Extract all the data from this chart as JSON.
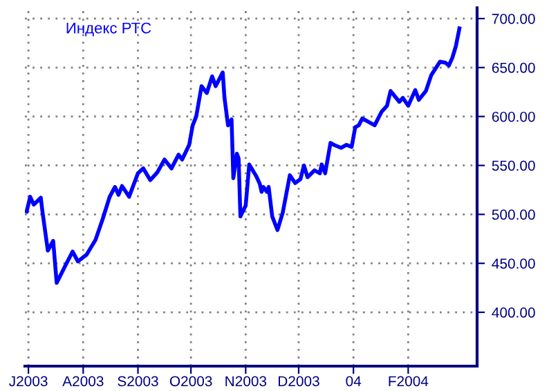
{
  "chart_data": {
    "type": "line",
    "title": "Индекс РТС",
    "x": [
      "2003-06-30",
      "2003-07-02",
      "2003-07-04",
      "2003-07-08",
      "2003-07-09",
      "2003-07-12",
      "2003-07-15",
      "2003-07-17",
      "2003-07-22",
      "2003-07-26",
      "2003-07-29",
      "2003-08-03",
      "2003-08-08",
      "2003-08-12",
      "2003-08-16",
      "2003-08-19",
      "2003-08-21",
      "2003-08-23",
      "2003-08-27",
      "2003-09-01",
      "2003-09-04",
      "2003-09-08",
      "2003-09-12",
      "2003-09-16",
      "2003-09-20",
      "2003-09-24",
      "2003-09-26",
      "2003-09-30",
      "2003-10-02",
      "2003-10-04",
      "2003-10-07",
      "2003-10-10",
      "2003-10-13",
      "2003-10-15",
      "2003-10-19",
      "2003-10-20",
      "2003-10-22",
      "2003-10-24",
      "2003-10-25",
      "2003-10-27",
      "2003-10-28",
      "2003-10-29",
      "2003-11-01",
      "2003-11-03",
      "2003-11-07",
      "2003-11-09",
      "2003-11-10",
      "2003-11-11",
      "2003-11-13",
      "2003-11-14",
      "2003-11-16",
      "2003-11-19",
      "2003-11-22",
      "2003-11-26",
      "2003-11-29",
      "2003-12-02",
      "2003-12-04",
      "2003-12-06",
      "2003-12-10",
      "2003-12-13",
      "2003-12-14",
      "2003-12-16",
      "2003-12-19",
      "2003-12-21",
      "2003-12-25",
      "2003-12-28",
      "2003-12-31",
      "2004-01-02",
      "2004-01-04",
      "2004-01-06",
      "2004-01-10",
      "2004-01-13",
      "2004-01-17",
      "2004-01-20",
      "2004-01-22",
      "2004-01-27",
      "2004-01-29",
      "2004-02-01",
      "2004-02-05",
      "2004-02-07",
      "2004-02-11",
      "2004-02-14",
      "2004-02-19",
      "2004-02-22",
      "2004-02-24",
      "2004-02-26",
      "2004-02-28",
      "2004-03-01"
    ],
    "series": [
      {
        "color": "#0000ff",
        "values": [
          503,
          518,
          510,
          517,
          502,
          463,
          473,
          430,
          448,
          462,
          452,
          459,
          474,
          495,
          518,
          528,
          520,
          529,
          518,
          542,
          547,
          535,
          543,
          556,
          547,
          561,
          556,
          571,
          591,
          600,
          631,
          624,
          641,
          631,
          645,
          619,
          591,
          597,
          537,
          562,
          557,
          498,
          509,
          551,
          539,
          531,
          523,
          528,
          523,
          528,
          498,
          484,
          502,
          540,
          532,
          536,
          550,
          538,
          545,
          542,
          551,
          542,
          573,
          571,
          568,
          571,
          569,
          589,
          591,
          598,
          594,
          591,
          605,
          611,
          626,
          615,
          619,
          611,
          627,
          617,
          626,
          642,
          656,
          655,
          652,
          660,
          672,
          690
        ]
      }
    ],
    "xlim": [
      "2003-06-29",
      "2004-03-11"
    ],
    "xticks": [
      {
        "value": "2003-07-01",
        "label": "J2003"
      },
      {
        "value": "2003-08-01",
        "label": "A2003"
      },
      {
        "value": "2003-09-01",
        "label": "S2003"
      },
      {
        "value": "2003-10-01",
        "label": "O2003"
      },
      {
        "value": "2003-11-01",
        "label": "N2003"
      },
      {
        "value": "2003-12-01",
        "label": "D2003"
      },
      {
        "value": "2004-01-01",
        "label": "04"
      },
      {
        "value": "2004-02-01",
        "label": "F2004"
      }
    ],
    "ylim": [
      345,
      711
    ],
    "yticks": [
      {
        "value": 400,
        "label": "400.00"
      },
      {
        "value": 450,
        "label": "450.00"
      },
      {
        "value": 500,
        "label": "500.00"
      },
      {
        "value": 550,
        "label": "550.00"
      },
      {
        "value": 600,
        "label": "600.00"
      },
      {
        "value": 650,
        "label": "650.00"
      },
      {
        "value": 700,
        "label": "700.00"
      }
    ],
    "grid": true,
    "marker": "none",
    "line_style": "solid"
  }
}
